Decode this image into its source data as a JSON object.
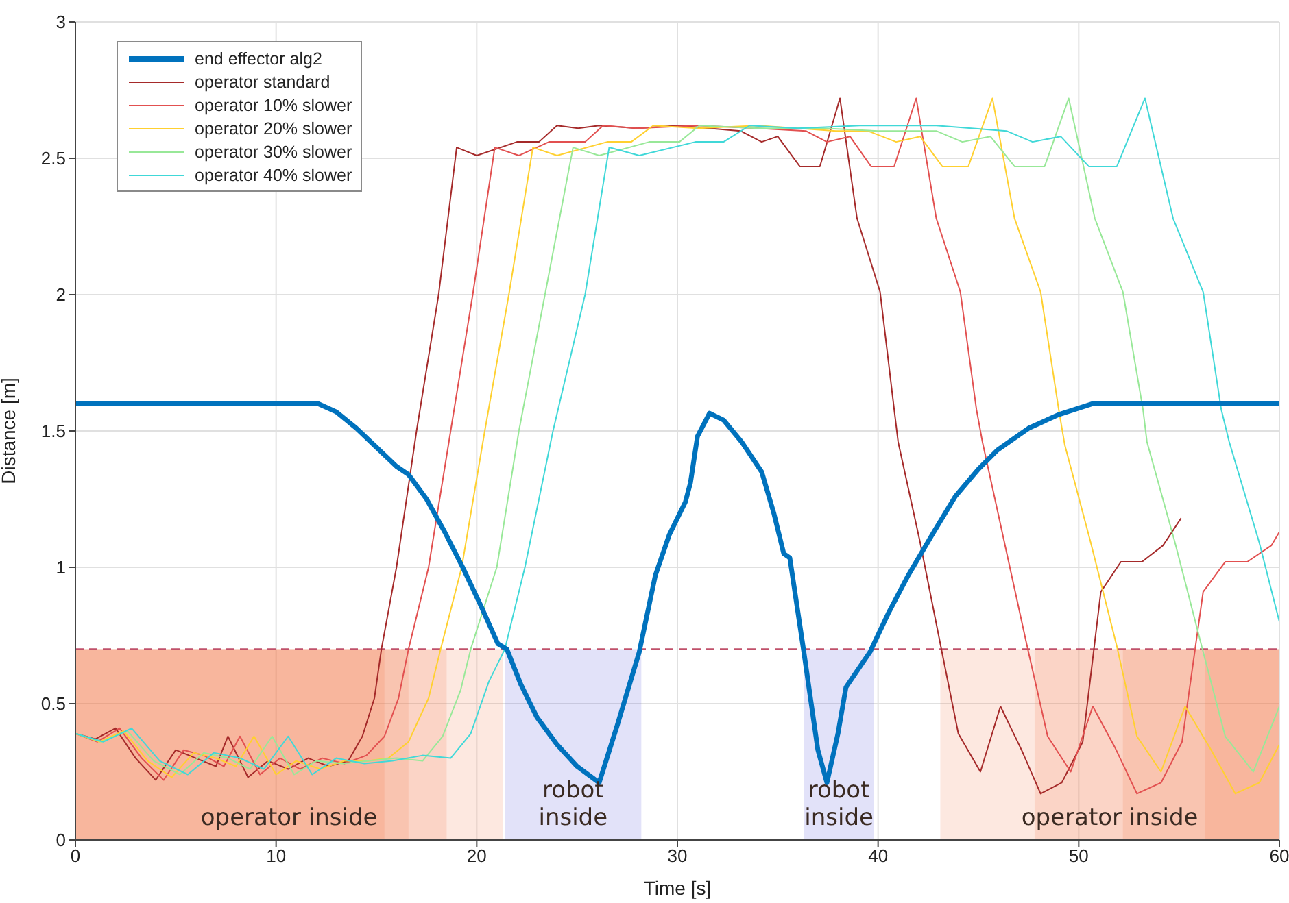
{
  "chart_data": {
    "type": "line",
    "xlabel": "Time [s]",
    "ylabel": "Distance [m]",
    "xlim": [
      0,
      60
    ],
    "xticks": [
      0,
      10,
      20,
      30,
      40,
      50,
      60
    ],
    "ylim": [
      0,
      3
    ],
    "yticks": [
      0,
      0.5,
      1,
      1.5,
      2,
      2.5,
      3
    ],
    "grid": true,
    "legend": "top left",
    "marker": "none",
    "line_style": "solid",
    "series": [
      {
        "name": "end effector alg2",
        "color": "#0072bd",
        "x": [
          0,
          12.1,
          13,
          14,
          15,
          16,
          16.6,
          17.5,
          18.4,
          19.3,
          20.2,
          21.05,
          21.5,
          22.2,
          23,
          24,
          25,
          26.1,
          27,
          28.1,
          28.9,
          29.6,
          30.4,
          30.65,
          31,
          31.6,
          32.3,
          33.2,
          34.2,
          34.8,
          35.3,
          35.6,
          36.3,
          37,
          37.45,
          38,
          38.4,
          39.6,
          40.5,
          41.5,
          42.7,
          43.85,
          45,
          45.95,
          47.5,
          49,
          50.7,
          60
        ],
        "values": [
          1.6,
          1.6,
          1.57,
          1.51,
          1.44,
          1.37,
          1.34,
          1.25,
          1.13,
          1.0,
          0.86,
          0.72,
          0.7,
          0.57,
          0.45,
          0.35,
          0.27,
          0.21,
          0.42,
          0.69,
          0.97,
          1.12,
          1.24,
          1.31,
          1.48,
          1.565,
          1.54,
          1.46,
          1.35,
          1.2,
          1.05,
          1.035,
          0.69,
          0.33,
          0.21,
          0.39,
          0.56,
          0.69,
          0.83,
          0.97,
          1.12,
          1.26,
          1.36,
          1.43,
          1.51,
          1.56,
          1.6,
          1.6
        ]
      },
      {
        "name": "operator standard",
        "color": "#a52a2a",
        "x": [
          0,
          1,
          2,
          3,
          4,
          5,
          6,
          7,
          7.6,
          8.6,
          9.6,
          10.6,
          11.6,
          12.6,
          13.6,
          14.3,
          14.9,
          15.25,
          16,
          17,
          18.1,
          19,
          20,
          22,
          23.1,
          24,
          25.05,
          26.1,
          28,
          30,
          33.15,
          34.2,
          35,
          36.1,
          37.1,
          38.1,
          38.95,
          40.1,
          40.8,
          41,
          42.1,
          43.1,
          44,
          45.1,
          46.1,
          47.15,
          48.1,
          49.15,
          50.2,
          51.1,
          52.1,
          53.15,
          54.2,
          55.1
        ],
        "values": [
          0.39,
          0.37,
          0.41,
          0.3,
          0.22,
          0.33,
          0.3,
          0.27,
          0.38,
          0.23,
          0.29,
          0.26,
          0.3,
          0.27,
          0.29,
          0.38,
          0.52,
          0.7,
          1.0,
          1.5,
          2.0,
          2.54,
          2.51,
          2.56,
          2.56,
          2.62,
          2.61,
          2.62,
          2.61,
          2.62,
          2.6,
          2.56,
          2.58,
          2.47,
          2.47,
          2.72,
          2.28,
          2.01,
          1.58,
          1.46,
          1.09,
          0.72,
          0.39,
          0.25,
          0.49,
          0.33,
          0.17,
          0.21,
          0.36,
          0.91,
          1.02,
          1.02,
          1.08,
          1.18
        ]
      },
      {
        "name": "operator 10% slower",
        "color": "#e25050",
        "x": [
          0,
          1.1,
          2.2,
          3.3,
          4.4,
          5.4,
          6.4,
          7.4,
          8.2,
          9.2,
          10.2,
          11.2,
          12.3,
          13.4,
          14.5,
          15.4,
          16.1,
          16.6,
          17.6,
          18.7,
          19.8,
          20.9,
          22.1,
          23.6,
          25.4,
          26.3,
          28,
          31,
          34,
          36.4,
          37.45,
          38.6,
          39.65,
          40.8,
          41.9,
          42.9,
          44.1,
          44.9,
          45.2,
          46.3,
          47.4,
          48.45,
          49.6,
          50.7,
          51.8,
          52.9,
          54.1,
          55.15,
          56.2,
          57.3,
          58.4,
          59.6,
          60
        ],
        "values": [
          0.39,
          0.36,
          0.41,
          0.3,
          0.22,
          0.33,
          0.31,
          0.27,
          0.38,
          0.24,
          0.3,
          0.26,
          0.3,
          0.28,
          0.31,
          0.38,
          0.52,
          0.7,
          1.0,
          1.5,
          2.0,
          2.54,
          2.51,
          2.56,
          2.56,
          2.62,
          2.61,
          2.62,
          2.61,
          2.6,
          2.56,
          2.58,
          2.47,
          2.47,
          2.72,
          2.28,
          2.01,
          1.58,
          1.46,
          1.09,
          0.72,
          0.38,
          0.25,
          0.49,
          0.34,
          0.17,
          0.21,
          0.36,
          0.91,
          1.02,
          1.02,
          1.08,
          1.13
        ]
      },
      {
        "name": "operator 20% slower",
        "color": "#ffd030",
        "x": [
          0,
          1.2,
          2.4,
          3.6,
          4.8,
          5.9,
          7,
          8,
          8.9,
          10,
          11,
          12.2,
          13.4,
          14.6,
          15.6,
          16.6,
          17.6,
          18.2,
          19.25,
          20.4,
          21.6,
          22.8,
          24,
          26.5,
          27.7,
          28.8,
          31,
          34,
          36,
          37.9,
          39.5,
          40.9,
          42.1,
          43.2,
          44.5,
          45.7,
          46.8,
          48.1,
          49,
          49.3,
          50.6,
          51.9,
          52.9,
          54.1,
          55.3,
          56.6,
          57.8,
          59,
          60
        ],
        "values": [
          0.39,
          0.36,
          0.4,
          0.29,
          0.23,
          0.32,
          0.3,
          0.27,
          0.38,
          0.24,
          0.29,
          0.26,
          0.29,
          0.29,
          0.3,
          0.36,
          0.52,
          0.7,
          1.0,
          1.5,
          2.0,
          2.54,
          2.51,
          2.56,
          2.56,
          2.62,
          2.61,
          2.62,
          2.61,
          2.6,
          2.6,
          2.56,
          2.58,
          2.47,
          2.47,
          2.72,
          2.28,
          2.01,
          1.58,
          1.45,
          1.09,
          0.71,
          0.38,
          0.25,
          0.49,
          0.33,
          0.17,
          0.21,
          0.35
        ]
      },
      {
        "name": "operator 30% slower",
        "color": "#98e898",
        "x": [
          0,
          1.3,
          2.6,
          3.9,
          5.2,
          6.4,
          7.6,
          8.7,
          9.8,
          10.9,
          12,
          13.3,
          14.6,
          16,
          17.3,
          18.3,
          19.2,
          19.7,
          21,
          22.1,
          23.4,
          24.8,
          26.1,
          28.6,
          30.1,
          31.1,
          34,
          37.3,
          40,
          42.9,
          44.2,
          45.6,
          46.8,
          48.3,
          49.5,
          50.8,
          52.2,
          53.2,
          53.4,
          54.8,
          56.2,
          57.3,
          58.7,
          60
        ],
        "values": [
          0.39,
          0.36,
          0.4,
          0.29,
          0.24,
          0.32,
          0.3,
          0.26,
          0.38,
          0.24,
          0.29,
          0.28,
          0.29,
          0.3,
          0.29,
          0.38,
          0.55,
          0.7,
          1.0,
          1.5,
          2.0,
          2.54,
          2.51,
          2.56,
          2.56,
          2.62,
          2.61,
          2.61,
          2.6,
          2.6,
          2.56,
          2.58,
          2.47,
          2.47,
          2.72,
          2.28,
          2.01,
          1.58,
          1.46,
          1.09,
          0.69,
          0.38,
          0.25,
          0.49
        ]
      },
      {
        "name": "operator 40% slower",
        "color": "#40d8d8",
        "x": [
          0,
          1.4,
          2.8,
          4.2,
          5.6,
          6.9,
          8.2,
          9.4,
          10.6,
          11.8,
          13,
          14.4,
          15.8,
          17.3,
          18.7,
          19.7,
          20.6,
          21.4,
          22.4,
          23.8,
          25.4,
          26.6,
          28.1,
          30.9,
          32.3,
          33.6,
          36,
          39.1,
          42.9,
          46.4,
          47.7,
          49.1,
          50.5,
          51.9,
          53.3,
          54.7,
          56.2,
          57.1,
          57.5,
          59,
          60
        ],
        "values": [
          0.39,
          0.36,
          0.41,
          0.29,
          0.24,
          0.32,
          0.3,
          0.26,
          0.38,
          0.24,
          0.3,
          0.28,
          0.29,
          0.31,
          0.3,
          0.39,
          0.58,
          0.7,
          1.0,
          1.5,
          2.0,
          2.54,
          2.51,
          2.56,
          2.56,
          2.62,
          2.61,
          2.62,
          2.62,
          2.6,
          2.56,
          2.58,
          2.47,
          2.47,
          2.72,
          2.28,
          2.01,
          1.58,
          1.46,
          1.09,
          0.8
        ]
      }
    ],
    "ref_lines": [
      {
        "axis": "y",
        "value": 0.7,
        "color": "#c0506a",
        "line_style": "dashed"
      }
    ],
    "bands": [
      {
        "axis": "x",
        "from": 0,
        "to": 15.4,
        "color": "#f07040"
      },
      {
        "axis": "x",
        "from": 0,
        "to": 16.6,
        "color": "#f07040"
      },
      {
        "axis": "x",
        "from": 0,
        "to": 18.5,
        "color": "#f07040"
      },
      {
        "axis": "x",
        "from": 0,
        "to": 21.3,
        "color": "#f07040"
      },
      {
        "axis": "x",
        "from": 43.1,
        "to": 60,
        "color": "#f07040"
      },
      {
        "axis": "x",
        "from": 47.8,
        "to": 60,
        "color": "#f07040"
      },
      {
        "axis": "x",
        "from": 52.2,
        "to": 60,
        "color": "#f07040"
      },
      {
        "axis": "x",
        "from": 56.3,
        "to": 60,
        "color": "#f07040"
      },
      {
        "axis": "x",
        "from": 21.4,
        "to": 28.2,
        "color": "#4848d8"
      },
      {
        "axis": "x",
        "from": 36.3,
        "to": 39.8,
        "color": "#4848d8"
      }
    ],
    "annotations": [
      "operator inside",
      "robot inside",
      "robot inside",
      "operator inside"
    ]
  }
}
